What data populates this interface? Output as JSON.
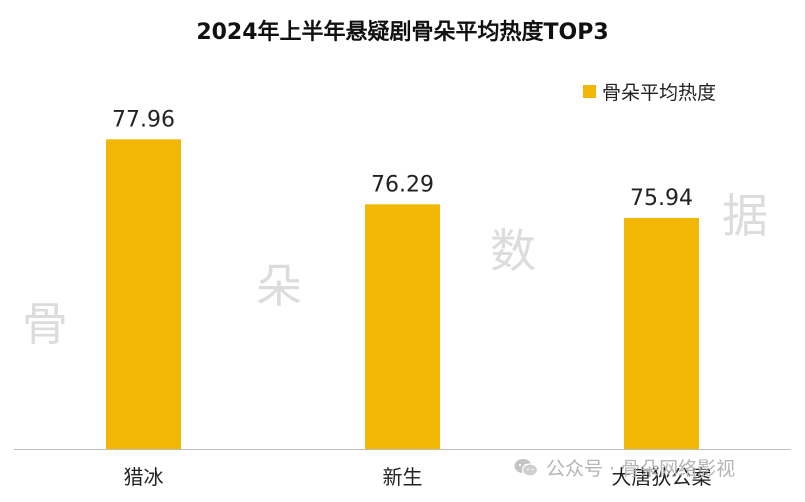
{
  "chart_data": {
    "type": "bar",
    "title": "2024年上半年悬疑剧骨朵平均热度TOP3",
    "categories": [
      "猎冰",
      "新生",
      "大唐狄公案"
    ],
    "series": [
      {
        "name": "骨朵平均热度",
        "values": [
          77.96,
          76.29,
          75.94
        ],
        "color": "#F2B705"
      }
    ],
    "ylim": [
      70,
      80
    ],
    "grid": false,
    "legend_position": "top-right",
    "data_labels": true
  },
  "watermark": {
    "chars": [
      "骨",
      "朵",
      "数",
      "据"
    ],
    "color": "#dcdcdc"
  },
  "footer": {
    "wechat_text": "公众号 · 骨朵网络影视",
    "icon": "wechat-icon"
  }
}
